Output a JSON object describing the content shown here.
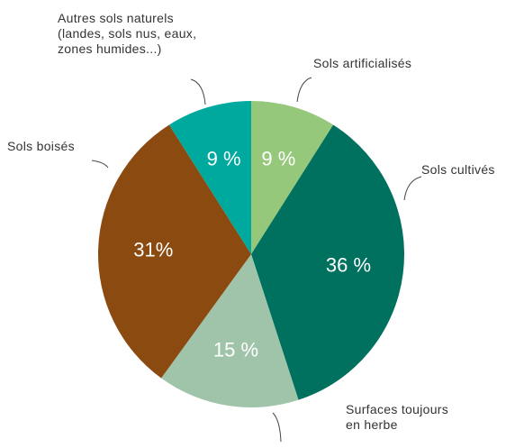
{
  "chart_data": {
    "type": "pie",
    "categories": [
      "Sols artificialisés",
      "Sols cultivés",
      "Surfaces toujours\nen herbe",
      "Sols boisés",
      "Autres sols naturels\n(landes, sols nus, eaux,\nzones humides...)"
    ],
    "values": [
      9,
      36,
      15,
      31,
      9
    ],
    "value_labels": [
      "9 %",
      "36 %",
      "15 %",
      "31%",
      "9 %"
    ],
    "colors": [
      "#95c87a",
      "#00705f",
      "#a0c4aa",
      "#8b4a10",
      "#00a99d"
    ]
  }
}
